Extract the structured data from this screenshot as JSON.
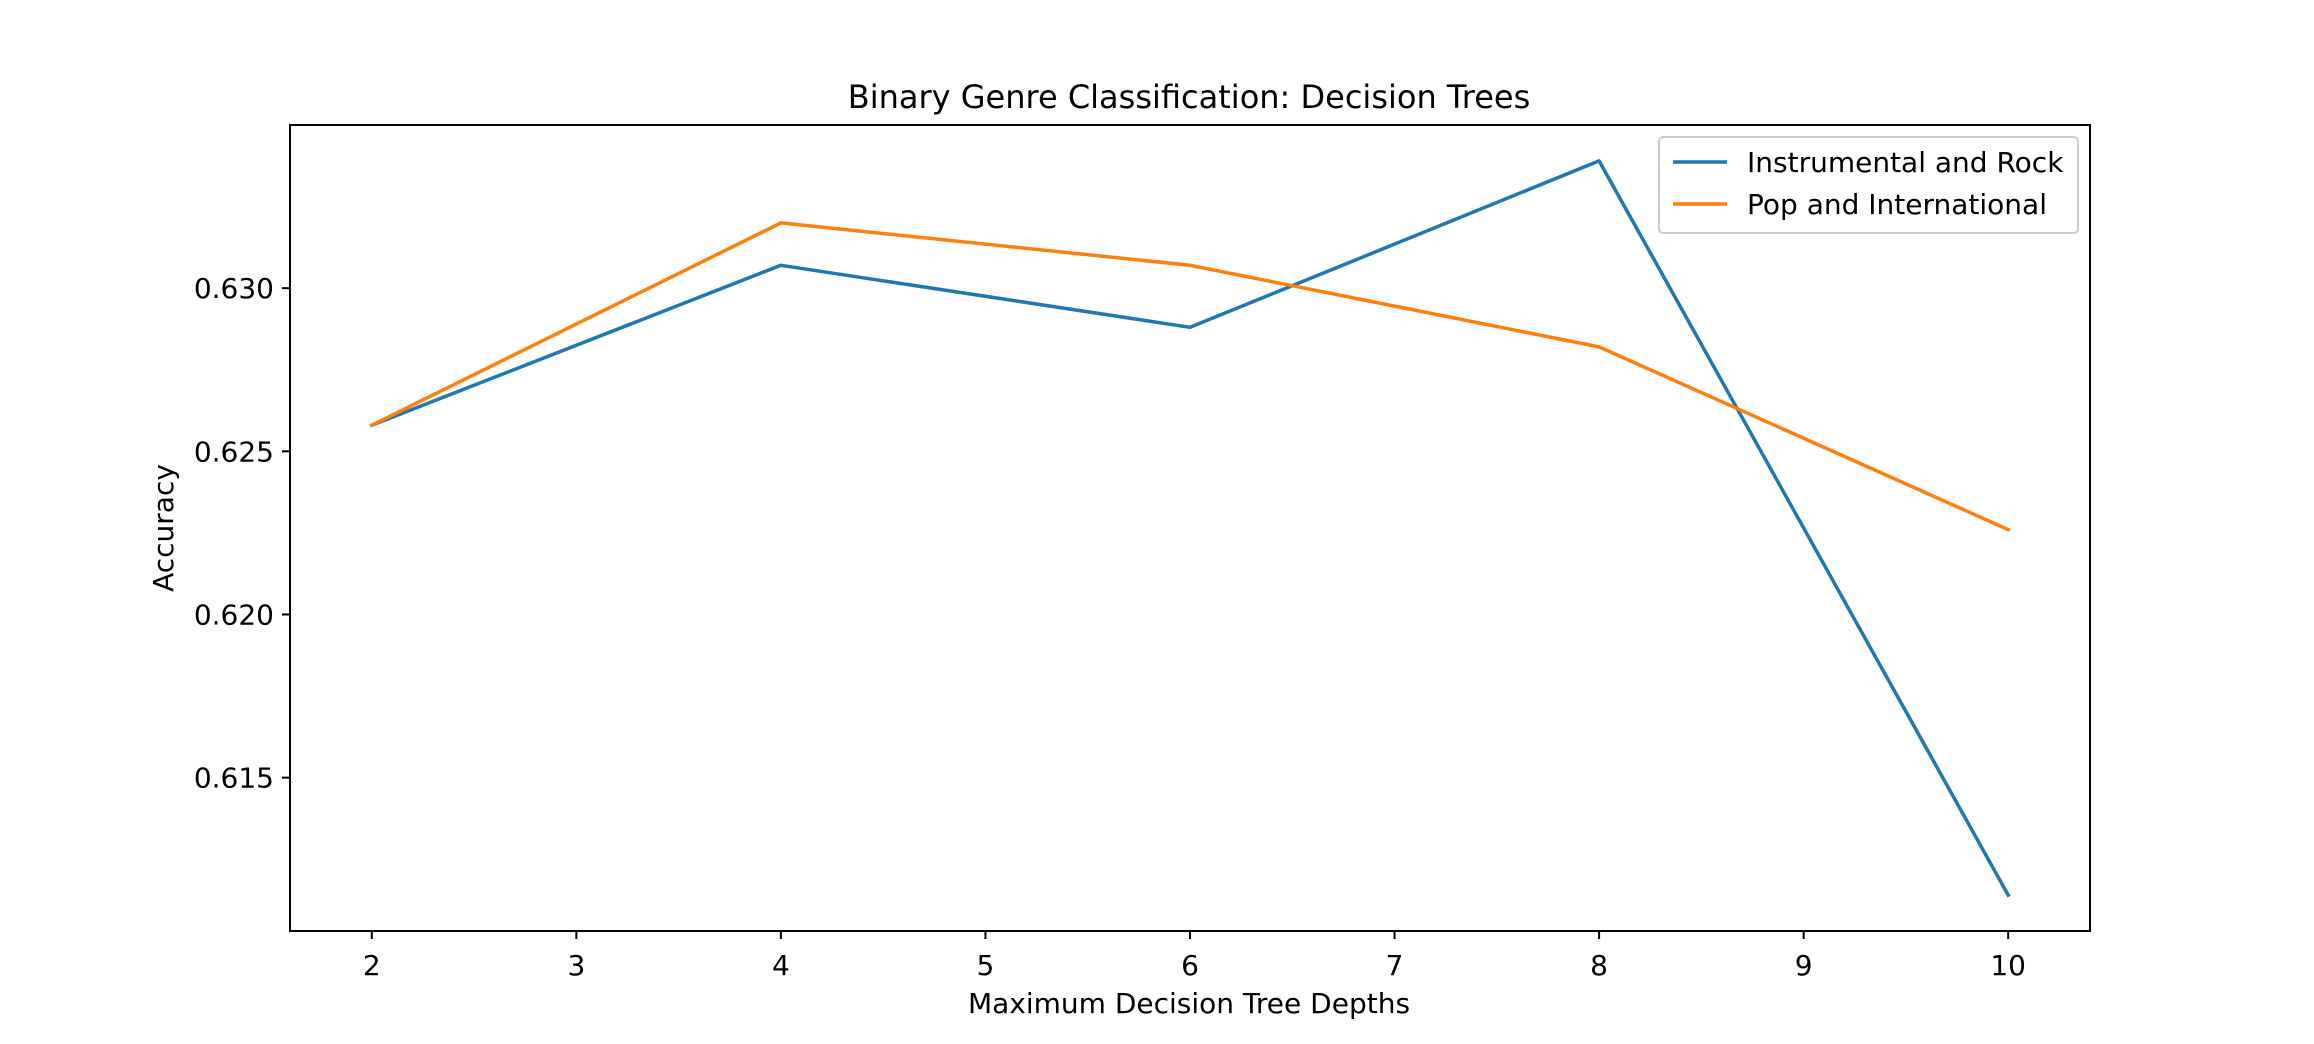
{
  "chart_data": {
    "type": "line",
    "title": "Binary Genre Classification: Decision Trees",
    "xlabel": "Maximum Decision Tree Depths",
    "ylabel": "Accuracy",
    "x": [
      2,
      4,
      6,
      8,
      10
    ],
    "xlim": [
      1.6,
      10.4
    ],
    "ylim": [
      0.6103,
      0.635
    ],
    "xticks": [
      "2",
      "3",
      "4",
      "5",
      "6",
      "7",
      "8",
      "9",
      "10"
    ],
    "yticks": [
      "0.615",
      "0.620",
      "0.625",
      "0.630"
    ],
    "grid": false,
    "legend_position": "top-right",
    "series": [
      {
        "name": "Instrumental and Rock",
        "color": "#1f77b4",
        "values": [
          0.6258,
          0.6307,
          0.6288,
          0.6339,
          0.6114
        ]
      },
      {
        "name": "Pop and International",
        "color": "#ff7f0e",
        "values": [
          0.6258,
          0.632,
          0.6307,
          0.6282,
          0.6226
        ]
      }
    ]
  }
}
